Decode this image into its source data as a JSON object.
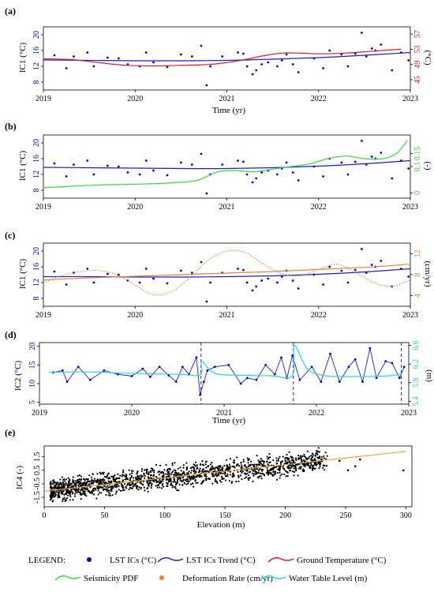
{
  "colors": {
    "lst_points": "#0000ee",
    "lst_trend": "#1b1be0",
    "ground_temp": "#e41a1c",
    "seismicity": "#33dd33",
    "deformation": "#f08030",
    "water_table": "#22dddd",
    "ic4_points": "#000000",
    "ic4_trend": "#e8a830",
    "axis_right_a": "#e41a1c",
    "axis_right_b": "#33cc33",
    "axis_right_c": "#f08030",
    "axis_right_d": "#22cccc"
  },
  "chart_data": [
    {
      "id": "a",
      "type": "line",
      "panel_label": "(a)",
      "xlabel": "Time (yr)",
      "ylabel": "IC1 (°C)",
      "ylabel_right": "(°C)",
      "xlim": [
        2019.0,
        2023.0
      ],
      "ylim": [
        6,
        22
      ],
      "y_ticks": [
        "8",
        "12",
        "16",
        "20"
      ],
      "y_tick_values": [
        8,
        12,
        16,
        20
      ],
      "y_right_ticks": [
        "45",
        "49",
        "53",
        "57"
      ],
      "y_right_tick_values": [
        45,
        49,
        53,
        57
      ],
      "y_right_lim": [
        42.3,
        58.9
      ],
      "x_ticks": [
        "2019",
        "2020",
        "2021",
        "2022",
        "2023"
      ],
      "x_tick_values": [
        2019,
        2020,
        2021,
        2022,
        2023
      ],
      "series": [
        {
          "name": "LST ICs (°C)",
          "kind": "points",
          "color_key": "lst_points",
          "x": [
            2019.12,
            2019.25,
            2019.33,
            2019.48,
            2019.55,
            2019.7,
            2019.82,
            2019.92,
            2020.05,
            2020.12,
            2020.2,
            2020.35,
            2020.5,
            2020.62,
            2020.72,
            2020.78,
            2020.82,
            2020.95,
            2021.12,
            2021.18,
            2021.22,
            2021.28,
            2021.32,
            2021.38,
            2021.45,
            2021.55,
            2021.6,
            2021.65,
            2021.72,
            2021.78,
            2021.95,
            2022.05,
            2022.12,
            2022.25,
            2022.32,
            2022.4,
            2022.47,
            2022.52,
            2022.58,
            2022.62,
            2022.68,
            2022.8,
            2022.9,
            2022.98
          ],
          "y": [
            14.8,
            11.5,
            14.5,
            15.5,
            12.0,
            14.2,
            14.0,
            12.5,
            12.0,
            15.5,
            13.0,
            11.8,
            15.0,
            14.5,
            17.2,
            7.2,
            12.0,
            14.5,
            15.5,
            15.2,
            12.0,
            10.0,
            11.0,
            12.5,
            13.0,
            12.0,
            13.5,
            15.0,
            12.5,
            10.5,
            14.0,
            11.5,
            16.0,
            15.0,
            12.0,
            15.2,
            20.5,
            14.5,
            16.5,
            16.0,
            17.5,
            11.0,
            15.5,
            13.5
          ]
        },
        {
          "name": "LST ICs Trend (°C)",
          "kind": "line",
          "color_key": "lst_trend",
          "x": [
            2019.0,
            2019.5,
            2020.0,
            2020.5,
            2021.0,
            2021.5,
            2022.0,
            2022.5,
            2023.0
          ],
          "y": [
            13.6,
            13.5,
            13.4,
            13.4,
            13.5,
            13.8,
            14.2,
            14.8,
            15.5
          ]
        },
        {
          "name": "Ground Temperature (°C)",
          "kind": "line",
          "axis": "right",
          "color_key": "ground_temp",
          "x": [
            2019.0,
            2019.3,
            2019.6,
            2019.9,
            2020.2,
            2020.5,
            2020.8,
            2021.0,
            2021.2,
            2021.4,
            2021.6,
            2021.8,
            2022.0,
            2022.3,
            2022.6,
            2022.9
          ],
          "y": [
            50.5,
            50.3,
            49.5,
            48.8,
            48.6,
            48.8,
            49.0,
            49.5,
            50.3,
            51.3,
            52.0,
            52.0,
            51.8,
            52.0,
            52.5,
            53.0
          ]
        }
      ]
    },
    {
      "id": "b",
      "type": "line",
      "panel_label": "(b)",
      "xlabel": "",
      "ylabel": "IC1 (°C)",
      "ylabel_right": "(-)",
      "xlim": [
        2019.0,
        2023.0
      ],
      "ylim": [
        6,
        22
      ],
      "y_ticks": [
        "8",
        "12",
        "16",
        "20"
      ],
      "y_tick_values": [
        8,
        12,
        16,
        20
      ],
      "y_right_ticks": [
        "0",
        "0.1",
        "0.15"
      ],
      "y_right_tick_values": [
        0,
        0.1,
        0.15
      ],
      "y_right_lim": [
        -0.02,
        0.22
      ],
      "x_ticks": [
        "2019",
        "2020",
        "2021",
        "2022",
        "2023"
      ],
      "x_tick_values": [
        2019,
        2020,
        2021,
        2022,
        2023
      ],
      "series": [
        {
          "name": "LST ICs (°C)",
          "kind": "points",
          "color_key": "lst_points",
          "same_as": "a"
        },
        {
          "name": "LST ICs Trend (°C)",
          "kind": "line",
          "color_key": "lst_trend",
          "x": [
            2019.0,
            2019.5,
            2020.0,
            2020.5,
            2021.0,
            2021.5,
            2022.0,
            2022.5,
            2023.0
          ],
          "y": [
            13.8,
            13.7,
            13.6,
            13.5,
            13.5,
            13.7,
            14.1,
            14.7,
            15.5
          ]
        },
        {
          "name": "Seismicity PDF",
          "kind": "line",
          "axis": "right",
          "color_key": "seismicity",
          "x": [
            2019.0,
            2019.3,
            2019.6,
            2019.9,
            2020.2,
            2020.5,
            2020.7,
            2020.9,
            2021.1,
            2021.3,
            2021.5,
            2021.7,
            2021.9,
            2022.1,
            2022.3,
            2022.5,
            2022.7,
            2022.85,
            2022.97
          ],
          "y": [
            0.02,
            0.025,
            0.03,
            0.032,
            0.035,
            0.04,
            0.05,
            0.08,
            0.085,
            0.08,
            0.09,
            0.1,
            0.11,
            0.13,
            0.14,
            0.13,
            0.13,
            0.15,
            0.2
          ]
        }
      ]
    },
    {
      "id": "c",
      "type": "line",
      "panel_label": "(c)",
      "xlabel": "",
      "ylabel": "IC1 (°C)",
      "ylabel_right": "(cm/yr)",
      "xlim": [
        2019.0,
        2023.0
      ],
      "ylim": [
        6,
        22
      ],
      "y_ticks": [
        "8",
        "12",
        "16",
        "20"
      ],
      "y_tick_values": [
        8,
        12,
        16,
        20
      ],
      "y_right_ticks": [
        "4",
        "8",
        "12"
      ],
      "y_right_tick_values": [
        4,
        8,
        12
      ],
      "y_right_lim": [
        2,
        14
      ],
      "x_ticks": [
        "2019",
        "2020",
        "2021",
        "2022",
        "2023"
      ],
      "x_tick_values": [
        2019,
        2020,
        2021,
        2022,
        2023
      ],
      "series": [
        {
          "name": "LST ICs (°C)",
          "kind": "points",
          "color_key": "lst_points",
          "same_as": "a"
        },
        {
          "name": "LST ICs Trend (°C)",
          "kind": "line",
          "color_key": "lst_trend",
          "x": [
            2019.0,
            2019.5,
            2020.0,
            2020.5,
            2021.0,
            2021.5,
            2022.0,
            2022.5,
            2023.0
          ],
          "y": [
            13.5,
            13.5,
            13.4,
            13.4,
            13.5,
            13.7,
            14.1,
            14.7,
            15.5
          ]
        },
        {
          "name": "Deformation Rate (cm/yr)",
          "kind": "line",
          "axis": "right",
          "color_key": "deformation",
          "x": [
            2019.0,
            2019.5,
            2020.0,
            2020.5,
            2021.0,
            2021.5,
            2022.0,
            2022.5,
            2023.0
          ],
          "y": [
            7.0,
            7.4,
            7.7,
            8.0,
            8.3,
            8.6,
            9.0,
            9.4,
            10.0
          ]
        },
        {
          "name": "Deformation Rate (dotted)",
          "kind": "dotted",
          "axis": "right",
          "color_key": "deformation",
          "x": [
            2019.0,
            2019.2,
            2019.4,
            2019.6,
            2019.8,
            2020.0,
            2020.2,
            2020.4,
            2020.6,
            2020.8,
            2021.0,
            2021.2,
            2021.4,
            2021.6,
            2021.8,
            2022.0,
            2022.2,
            2022.4,
            2022.6,
            2022.8,
            2023.0
          ],
          "y": [
            6.5,
            7.8,
            8.6,
            8.8,
            8.0,
            6.0,
            4.2,
            4.8,
            7.5,
            10.8,
            12.5,
            12.2,
            10.0,
            8.2,
            7.8,
            9.0,
            10.0,
            8.5,
            6.5,
            5.8,
            7.0
          ]
        }
      ]
    },
    {
      "id": "d",
      "type": "line",
      "panel_label": "(d)",
      "xlabel": "Time (yr)",
      "ylabel": "IC2 (°C)",
      "ylabel_right": "(m)",
      "xlim": [
        2019.0,
        2023.0
      ],
      "ylim": [
        4.5,
        21
      ],
      "y_ticks": [
        "5",
        "10",
        "15",
        "20"
      ],
      "y_tick_values": [
        5,
        10,
        15,
        20
      ],
      "y_right_ticks": [
        "5.4",
        "5.8",
        "6.2",
        "6.6"
      ],
      "y_right_tick_values": [
        5.4,
        5.8,
        6.2,
        6.6
      ],
      "y_right_lim": [
        5.34,
        6.66
      ],
      "x_ticks": [
        "2019",
        "2020",
        "2021",
        "2022",
        "2023"
      ],
      "x_tick_values": [
        2019,
        2020,
        2021,
        2022,
        2023
      ],
      "event_lines": [
        2020.75,
        2021.75,
        2022.92
      ],
      "series": [
        {
          "name": "LST ICs (°C)",
          "kind": "points_line",
          "color_key": "lst_points",
          "x": [
            2019.15,
            2019.25,
            2019.3,
            2019.42,
            2019.55,
            2019.7,
            2019.85,
            2020.0,
            2020.12,
            2020.2,
            2020.3,
            2020.4,
            2020.48,
            2020.55,
            2020.62,
            2020.7,
            2020.74,
            2020.78,
            2020.82,
            2020.9,
            2021.05,
            2021.18,
            2021.25,
            2021.35,
            2021.45,
            2021.55,
            2021.62,
            2021.68,
            2021.74,
            2021.82,
            2021.95,
            2022.05,
            2022.15,
            2022.25,
            2022.35,
            2022.42,
            2022.5,
            2022.58,
            2022.65,
            2022.75,
            2022.82,
            2022.9,
            2022.95
          ],
          "y": [
            13.0,
            13.5,
            10.5,
            14.5,
            11.0,
            13.5,
            12.5,
            12.0,
            14.0,
            11.8,
            14.5,
            12.2,
            10.5,
            14.5,
            12.5,
            17.0,
            7.0,
            10.5,
            13.5,
            14.5,
            15.0,
            10.0,
            11.5,
            11.0,
            15.0,
            12.5,
            17.0,
            11.5,
            17.5,
            11.0,
            14.5,
            10.5,
            18.0,
            10.5,
            14.5,
            16.5,
            10.5,
            19.5,
            11.5,
            16.0,
            15.5,
            11.5,
            14.5
          ]
        },
        {
          "name": "Water Table Level (m)",
          "kind": "line",
          "axis": "right",
          "color_key": "water_table",
          "x": [
            2019.1,
            2019.5,
            2020.0,
            2020.5,
            2020.74,
            2020.76,
            2020.9,
            2021.2,
            2021.5,
            2021.74,
            2021.76,
            2021.9,
            2022.1,
            2022.4,
            2022.8,
            2022.93
          ],
          "y": [
            6.02,
            6.03,
            6.0,
            5.98,
            5.97,
            6.25,
            6.0,
            5.96,
            5.95,
            5.95,
            6.6,
            6.1,
            5.95,
            5.93,
            5.95,
            6.0
          ]
        }
      ]
    },
    {
      "id": "e",
      "type": "scatter",
      "panel_label": "(e)",
      "xlabel": "Elevation (m)",
      "ylabel": "IC4 (-)",
      "xlim": [
        0,
        305
      ],
      "ylim": [
        -2.2,
        2.3
      ],
      "x_ticks": [
        "0",
        "50",
        "100",
        "150",
        "200",
        "250",
        "300"
      ],
      "x_tick_values": [
        0,
        50,
        100,
        150,
        200,
        250,
        300
      ],
      "y_ticks": [
        "-1.5",
        "-0.5",
        "0.5",
        "1.5"
      ],
      "y_tick_values": [
        -1.5,
        -0.5,
        0.5,
        1.5
      ],
      "trend": {
        "x": [
          0,
          300
        ],
        "y": [
          -1.05,
          1.9
        ]
      },
      "cloud": {
        "x_min": 5,
        "x_max": 235,
        "y_intercept": -1.05,
        "slope_per_m": 0.0098,
        "y_spread": 1.6,
        "n_points": 1600
      },
      "outliers": {
        "x": [
          245,
          252,
          258,
          262,
          298
        ],
        "y": [
          1.2,
          0.5,
          0.8,
          1.3,
          0.5
        ]
      }
    }
  ],
  "legend": {
    "title": "LEGEND:",
    "items": [
      {
        "label": "LST ICs (°C)",
        "kind": "dot",
        "color_key": "lst_points"
      },
      {
        "label": "LST  ICs Trend (°C)",
        "kind": "line",
        "color_key": "lst_trend"
      },
      {
        "label": "Ground Temperature (°C)",
        "kind": "line",
        "color_key": "ground_temp"
      },
      {
        "label": "Seismicity PDF",
        "kind": "line",
        "color_key": "seismicity"
      },
      {
        "label": "Deformation Rate (cm/yr)",
        "kind": "dot",
        "color_key": "deformation"
      },
      {
        "label": "Water Table Level (m)",
        "kind": "line",
        "color_key": "water_table"
      }
    ]
  }
}
